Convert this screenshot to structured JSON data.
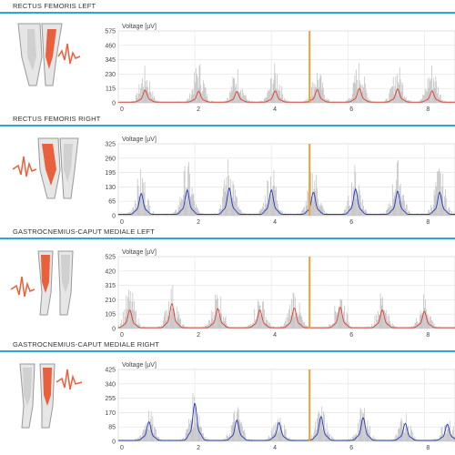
{
  "colors": {
    "accent_rule": "#29a6e0",
    "marker": "#e8a13a",
    "red_trace": "#e03c31",
    "blue_trace": "#2637c2",
    "raw": "#bdbdbd",
    "muscle": "#e8603c"
  },
  "panels": [
    {
      "title": "RECTUS FEMORIS LEFT",
      "anatomy_icon": "thigh-front-left-muscle-icon"
    },
    {
      "title": "RECTUS FEMORIS RIGHT",
      "anatomy_icon": "thigh-front-right-muscle-icon"
    },
    {
      "title": "GASTROCNEMIUS-CAPUT MEDIALE LEFT",
      "anatomy_icon": "calf-back-left-muscle-icon"
    },
    {
      "title": "GASTROCNEMIUS-CAPUT MEDIALE RIGHT",
      "anatomy_icon": "calf-back-right-muscle-icon"
    }
  ],
  "chart_data": [
    {
      "type": "line",
      "ylabel": "Voltage [µV]",
      "yticks": [
        0,
        115,
        230,
        345,
        460,
        575
      ],
      "ylim": [
        0,
        575
      ],
      "xlim": [
        0,
        8.8
      ],
      "xticks": [
        0,
        2,
        4,
        6,
        8
      ],
      "marker_x": 5.0,
      "trace_color": "#e03c31",
      "peaks": [
        0.7,
        2.1,
        3.1,
        4.1,
        5.2,
        6.3,
        7.3,
        8.2
      ],
      "peak_heights": [
        95,
        85,
        85,
        90,
        100,
        110,
        105,
        90
      ],
      "raw_max": [
        290,
        340,
        290,
        310,
        290,
        340,
        310,
        320
      ]
    },
    {
      "type": "line",
      "ylabel": "Voltage [µV]",
      "yticks": [
        0,
        65,
        130,
        195,
        260,
        325
      ],
      "ylim": [
        0,
        325
      ],
      "xlim": [
        0,
        8.8
      ],
      "xticks": [
        0,
        2,
        4,
        6,
        8
      ],
      "marker_x": 5.0,
      "trace_color": "#2637c2",
      "peaks": [
        0.6,
        1.8,
        2.9,
        4.0,
        5.1,
        6.2,
        7.3,
        8.4
      ],
      "peak_heights": [
        95,
        110,
        120,
        110,
        100,
        115,
        105,
        100
      ],
      "raw_max": [
        210,
        250,
        270,
        240,
        230,
        230,
        250,
        225
      ]
    },
    {
      "type": "line",
      "ylabel": "Voltage [µV]",
      "yticks": [
        0,
        105,
        210,
        315,
        420,
        525
      ],
      "ylim": [
        0,
        525
      ],
      "xlim": [
        0,
        8.8
      ],
      "xticks": [
        0,
        2,
        4,
        6,
        8
      ],
      "marker_x": 5.0,
      "trace_color": "#e03c31",
      "peaks": [
        0.3,
        1.4,
        2.6,
        3.7,
        4.6,
        5.8,
        6.9,
        8.0
      ],
      "peak_heights": [
        130,
        175,
        140,
        130,
        145,
        150,
        130,
        120
      ],
      "raw_max": [
        300,
        330,
        310,
        260,
        310,
        290,
        280,
        260
      ]
    },
    {
      "type": "line",
      "ylabel": "Voltage [µV]",
      "yticks": [
        0,
        85,
        170,
        255,
        340,
        425
      ],
      "ylim": [
        0,
        425
      ],
      "xlim": [
        0,
        8.8
      ],
      "xticks": [
        0,
        2,
        4,
        6,
        8
      ],
      "marker_x": 5.0,
      "trace_color": "#2637c2",
      "peaks": [
        0.8,
        2.0,
        3.1,
        4.2,
        5.3,
        6.4,
        7.5,
        8.6
      ],
      "peak_heights": [
        110,
        220,
        120,
        105,
        140,
        135,
        100,
        95
      ],
      "raw_max": [
        190,
        300,
        210,
        180,
        210,
        220,
        180,
        170
      ]
    }
  ]
}
